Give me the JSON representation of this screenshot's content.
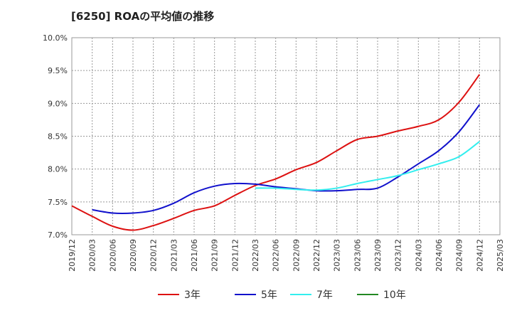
{
  "chart_data": {
    "type": "line",
    "title": "[6250]  ROAの平均値の推移",
    "xlabel": "",
    "ylabel": "",
    "ylim": [
      7.0,
      10.0
    ],
    "y_ticks": [
      "7.0%",
      "7.5%",
      "8.0%",
      "8.5%",
      "9.0%",
      "9.5%",
      "10.0%"
    ],
    "y_tick_values": [
      7.0,
      7.5,
      8.0,
      8.5,
      9.0,
      9.5,
      10.0
    ],
    "x_ticks": [
      "2019/12",
      "2020/03",
      "2020/06",
      "2020/09",
      "2020/12",
      "2021/03",
      "2021/06",
      "2021/09",
      "2021/12",
      "2022/03",
      "2022/06",
      "2022/09",
      "2022/12",
      "2023/03",
      "2023/06",
      "2023/09",
      "2023/12",
      "2024/03",
      "2024/06",
      "2024/09",
      "2024/12",
      "2025/03"
    ],
    "grid": true,
    "legend_position": "bottom",
    "series": [
      {
        "name": "3年",
        "color": "#dd1111",
        "x": [
          "2019/12",
          "2020/03",
          "2020/06",
          "2020/09",
          "2020/12",
          "2021/03",
          "2021/06",
          "2021/09",
          "2021/12",
          "2022/03",
          "2022/06",
          "2022/09",
          "2022/12",
          "2023/03",
          "2023/06",
          "2023/09",
          "2023/12",
          "2024/03",
          "2024/06",
          "2024/09",
          "2024/12"
        ],
        "values": [
          7.44,
          7.28,
          7.13,
          7.07,
          7.14,
          7.25,
          7.37,
          7.44,
          7.6,
          7.75,
          7.85,
          7.99,
          8.1,
          8.28,
          8.45,
          8.5,
          8.58,
          8.65,
          8.75,
          9.02,
          9.44
        ]
      },
      {
        "name": "5年",
        "color": "#1111cc",
        "x": [
          "2020/03",
          "2020/06",
          "2020/09",
          "2020/12",
          "2021/03",
          "2021/06",
          "2021/09",
          "2021/12",
          "2022/03",
          "2022/06",
          "2022/09",
          "2022/12",
          "2023/03",
          "2023/06",
          "2023/09",
          "2023/12",
          "2024/03",
          "2024/06",
          "2024/09",
          "2024/12"
        ],
        "values": [
          7.38,
          7.33,
          7.33,
          7.37,
          7.48,
          7.64,
          7.74,
          7.78,
          7.77,
          7.73,
          7.7,
          7.67,
          7.67,
          7.69,
          7.71,
          7.88,
          8.08,
          8.28,
          8.57,
          8.98
        ]
      },
      {
        "name": "7年",
        "color": "#33eeee",
        "x": [
          "2022/03",
          "2022/06",
          "2022/09",
          "2022/12",
          "2023/03",
          "2023/06",
          "2023/09",
          "2023/12",
          "2024/03",
          "2024/06",
          "2024/09",
          "2024/12"
        ],
        "values": [
          7.71,
          7.71,
          7.69,
          7.68,
          7.71,
          7.78,
          7.84,
          7.9,
          7.99,
          8.08,
          8.19,
          8.42
        ]
      },
      {
        "name": "10年",
        "color": "#228822",
        "x": [],
        "values": []
      }
    ]
  }
}
